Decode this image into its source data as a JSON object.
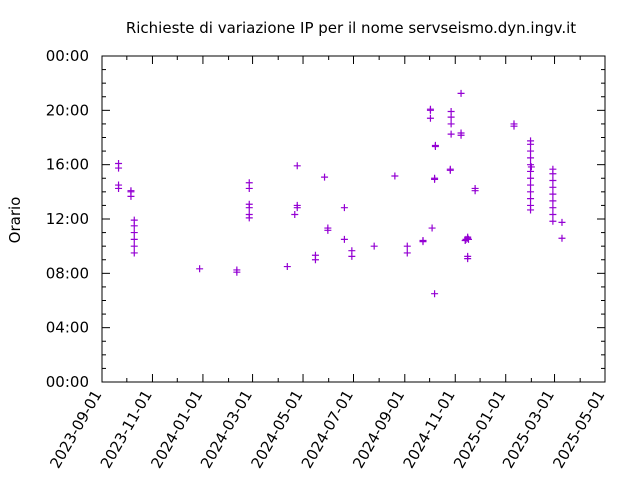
{
  "chart_data": {
    "type": "scatter",
    "title": "Richieste di variazione IP per il nome servseismo.dyn.ingv.it",
    "ylabel": "Orario",
    "xlabel": "",
    "x_ticks": [
      "2023-09-01",
      "2023-11-01",
      "2024-01-01",
      "2024-03-01",
      "2024-05-01",
      "2024-07-01",
      "2024-09-01",
      "2024-11-01",
      "2025-01-01",
      "2025-03-01",
      "2025-05-01"
    ],
    "y_ticks": [
      "00:00",
      "04:00",
      "08:00",
      "12:00",
      "16:00",
      "20:00",
      "00:00"
    ],
    "xlim": [
      "2023-09-01",
      "2025-05-01"
    ],
    "ylim_hours": [
      0,
      24
    ],
    "grid": false,
    "legend": "none",
    "marker": "plus",
    "color": "#9400d3",
    "series": [
      {
        "values": [
          {
            "x": "2023-09-21",
            "y": "14:15"
          },
          {
            "x": "2023-09-21",
            "y": "14:30"
          },
          {
            "x": "2023-09-21",
            "y": "15:45"
          },
          {
            "x": "2023-09-21",
            "y": "16:05"
          },
          {
            "x": "2023-10-06",
            "y": "13:40"
          },
          {
            "x": "2023-10-06",
            "y": "14:00"
          },
          {
            "x": "2023-10-06",
            "y": "14:05"
          },
          {
            "x": "2023-10-10",
            "y": "09:30"
          },
          {
            "x": "2023-10-10",
            "y": "10:00"
          },
          {
            "x": "2023-10-10",
            "y": "10:30"
          },
          {
            "x": "2023-10-10",
            "y": "11:00"
          },
          {
            "x": "2023-10-10",
            "y": "11:30"
          },
          {
            "x": "2023-10-10",
            "y": "11:55"
          },
          {
            "x": "2023-12-28",
            "y": "08:20"
          },
          {
            "x": "2024-02-11",
            "y": "08:05"
          },
          {
            "x": "2024-02-11",
            "y": "08:15"
          },
          {
            "x": "2024-02-26",
            "y": "12:05"
          },
          {
            "x": "2024-02-26",
            "y": "12:20"
          },
          {
            "x": "2024-02-26",
            "y": "12:50"
          },
          {
            "x": "2024-02-26",
            "y": "13:05"
          },
          {
            "x": "2024-02-26",
            "y": "14:15"
          },
          {
            "x": "2024-02-26",
            "y": "14:40"
          },
          {
            "x": "2024-04-12",
            "y": "08:30"
          },
          {
            "x": "2024-04-21",
            "y": "12:20"
          },
          {
            "x": "2024-04-24",
            "y": "12:50"
          },
          {
            "x": "2024-04-24",
            "y": "13:00"
          },
          {
            "x": "2024-04-24",
            "y": "15:55"
          },
          {
            "x": "2024-05-16",
            "y": "09:00"
          },
          {
            "x": "2024-05-16",
            "y": "09:20"
          },
          {
            "x": "2024-05-27",
            "y": "15:05"
          },
          {
            "x": "2024-05-31",
            "y": "11:10"
          },
          {
            "x": "2024-05-31",
            "y": "11:20"
          },
          {
            "x": "2024-06-20",
            "y": "10:30"
          },
          {
            "x": "2024-06-20",
            "y": "12:50"
          },
          {
            "x": "2024-06-29",
            "y": "09:15"
          },
          {
            "x": "2024-06-29",
            "y": "09:40"
          },
          {
            "x": "2024-07-26",
            "y": "10:00"
          },
          {
            "x": "2024-08-20",
            "y": "15:10"
          },
          {
            "x": "2024-09-04",
            "y": "09:30"
          },
          {
            "x": "2024-09-04",
            "y": "10:00"
          },
          {
            "x": "2024-09-23",
            "y": "10:20"
          },
          {
            "x": "2024-09-23",
            "y": "10:25"
          },
          {
            "x": "2024-10-02",
            "y": "19:25"
          },
          {
            "x": "2024-10-02",
            "y": "20:00"
          },
          {
            "x": "2024-10-02",
            "y": "20:05"
          },
          {
            "x": "2024-10-04",
            "y": "11:20"
          },
          {
            "x": "2024-10-07",
            "y": "06:30"
          },
          {
            "x": "2024-10-07",
            "y": "14:55"
          },
          {
            "x": "2024-10-07",
            "y": "15:00"
          },
          {
            "x": "2024-10-08",
            "y": "17:20"
          },
          {
            "x": "2024-10-08",
            "y": "17:25"
          },
          {
            "x": "2024-10-26",
            "y": "15:35"
          },
          {
            "x": "2024-10-26",
            "y": "15:40"
          },
          {
            "x": "2024-10-27",
            "y": "18:15"
          },
          {
            "x": "2024-10-27",
            "y": "19:00"
          },
          {
            "x": "2024-10-27",
            "y": "19:30"
          },
          {
            "x": "2024-10-27",
            "y": "19:55"
          },
          {
            "x": "2024-11-08",
            "y": "18:10"
          },
          {
            "x": "2024-11-08",
            "y": "18:20"
          },
          {
            "x": "2024-11-08",
            "y": "21:15"
          },
          {
            "x": "2024-11-13",
            "y": "10:25"
          },
          {
            "x": "2024-11-14",
            "y": "10:30"
          },
          {
            "x": "2024-11-16",
            "y": "09:05"
          },
          {
            "x": "2024-11-16",
            "y": "09:15"
          },
          {
            "x": "2024-11-16",
            "y": "10:35"
          },
          {
            "x": "2024-11-16",
            "y": "10:40"
          },
          {
            "x": "2024-11-17",
            "y": "10:30"
          },
          {
            "x": "2024-11-25",
            "y": "14:05"
          },
          {
            "x": "2024-11-25",
            "y": "14:15"
          },
          {
            "x": "2025-01-11",
            "y": "18:50"
          },
          {
            "x": "2025-01-11",
            "y": "19:00"
          },
          {
            "x": "2025-01-31",
            "y": "12:40"
          },
          {
            "x": "2025-01-31",
            "y": "13:00"
          },
          {
            "x": "2025-01-31",
            "y": "13:30"
          },
          {
            "x": "2025-01-31",
            "y": "14:00"
          },
          {
            "x": "2025-01-31",
            "y": "14:30"
          },
          {
            "x": "2025-01-31",
            "y": "15:00"
          },
          {
            "x": "2025-01-31",
            "y": "15:30"
          },
          {
            "x": "2025-01-31",
            "y": "16:00"
          },
          {
            "x": "2025-01-31",
            "y": "16:30"
          },
          {
            "x": "2025-01-31",
            "y": "17:00"
          },
          {
            "x": "2025-01-31",
            "y": "17:30"
          },
          {
            "x": "2025-01-31",
            "y": "17:45"
          },
          {
            "x": "2025-02-01",
            "y": "15:50"
          },
          {
            "x": "2025-02-27",
            "y": "11:50"
          },
          {
            "x": "2025-02-27",
            "y": "12:20"
          },
          {
            "x": "2025-02-27",
            "y": "12:50"
          },
          {
            "x": "2025-02-27",
            "y": "13:20"
          },
          {
            "x": "2025-02-27",
            "y": "13:50"
          },
          {
            "x": "2025-02-27",
            "y": "14:20"
          },
          {
            "x": "2025-02-27",
            "y": "14:50"
          },
          {
            "x": "2025-02-27",
            "y": "15:20"
          },
          {
            "x": "2025-02-27",
            "y": "15:40"
          },
          {
            "x": "2025-03-10",
            "y": "10:35"
          },
          {
            "x": "2025-03-10",
            "y": "11:45"
          }
        ]
      }
    ]
  }
}
